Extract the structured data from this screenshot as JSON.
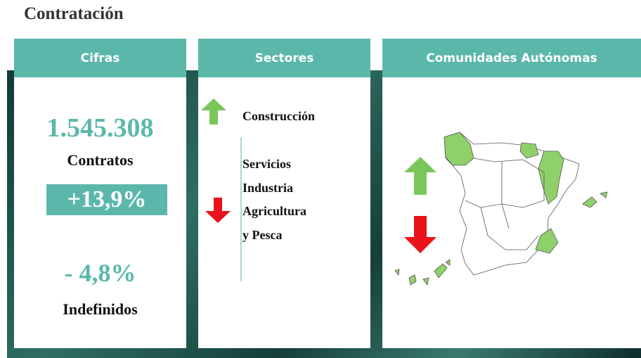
{
  "header": {
    "title": "Contratación"
  },
  "panels": [
    {
      "title": "Cifras",
      "total": "1.545.308",
      "total_label": "Contratos",
      "change": "+13,9%",
      "indef_change": "- 4,8%",
      "indef_label": "Indefinidos"
    },
    {
      "title": "Sectores",
      "up": [
        "Construcción"
      ],
      "down": [
        "Servicios",
        "Industria",
        "Agricultura",
        "y Pesca"
      ]
    },
    {
      "title": "Comunidades Autónomas"
    }
  ]
}
